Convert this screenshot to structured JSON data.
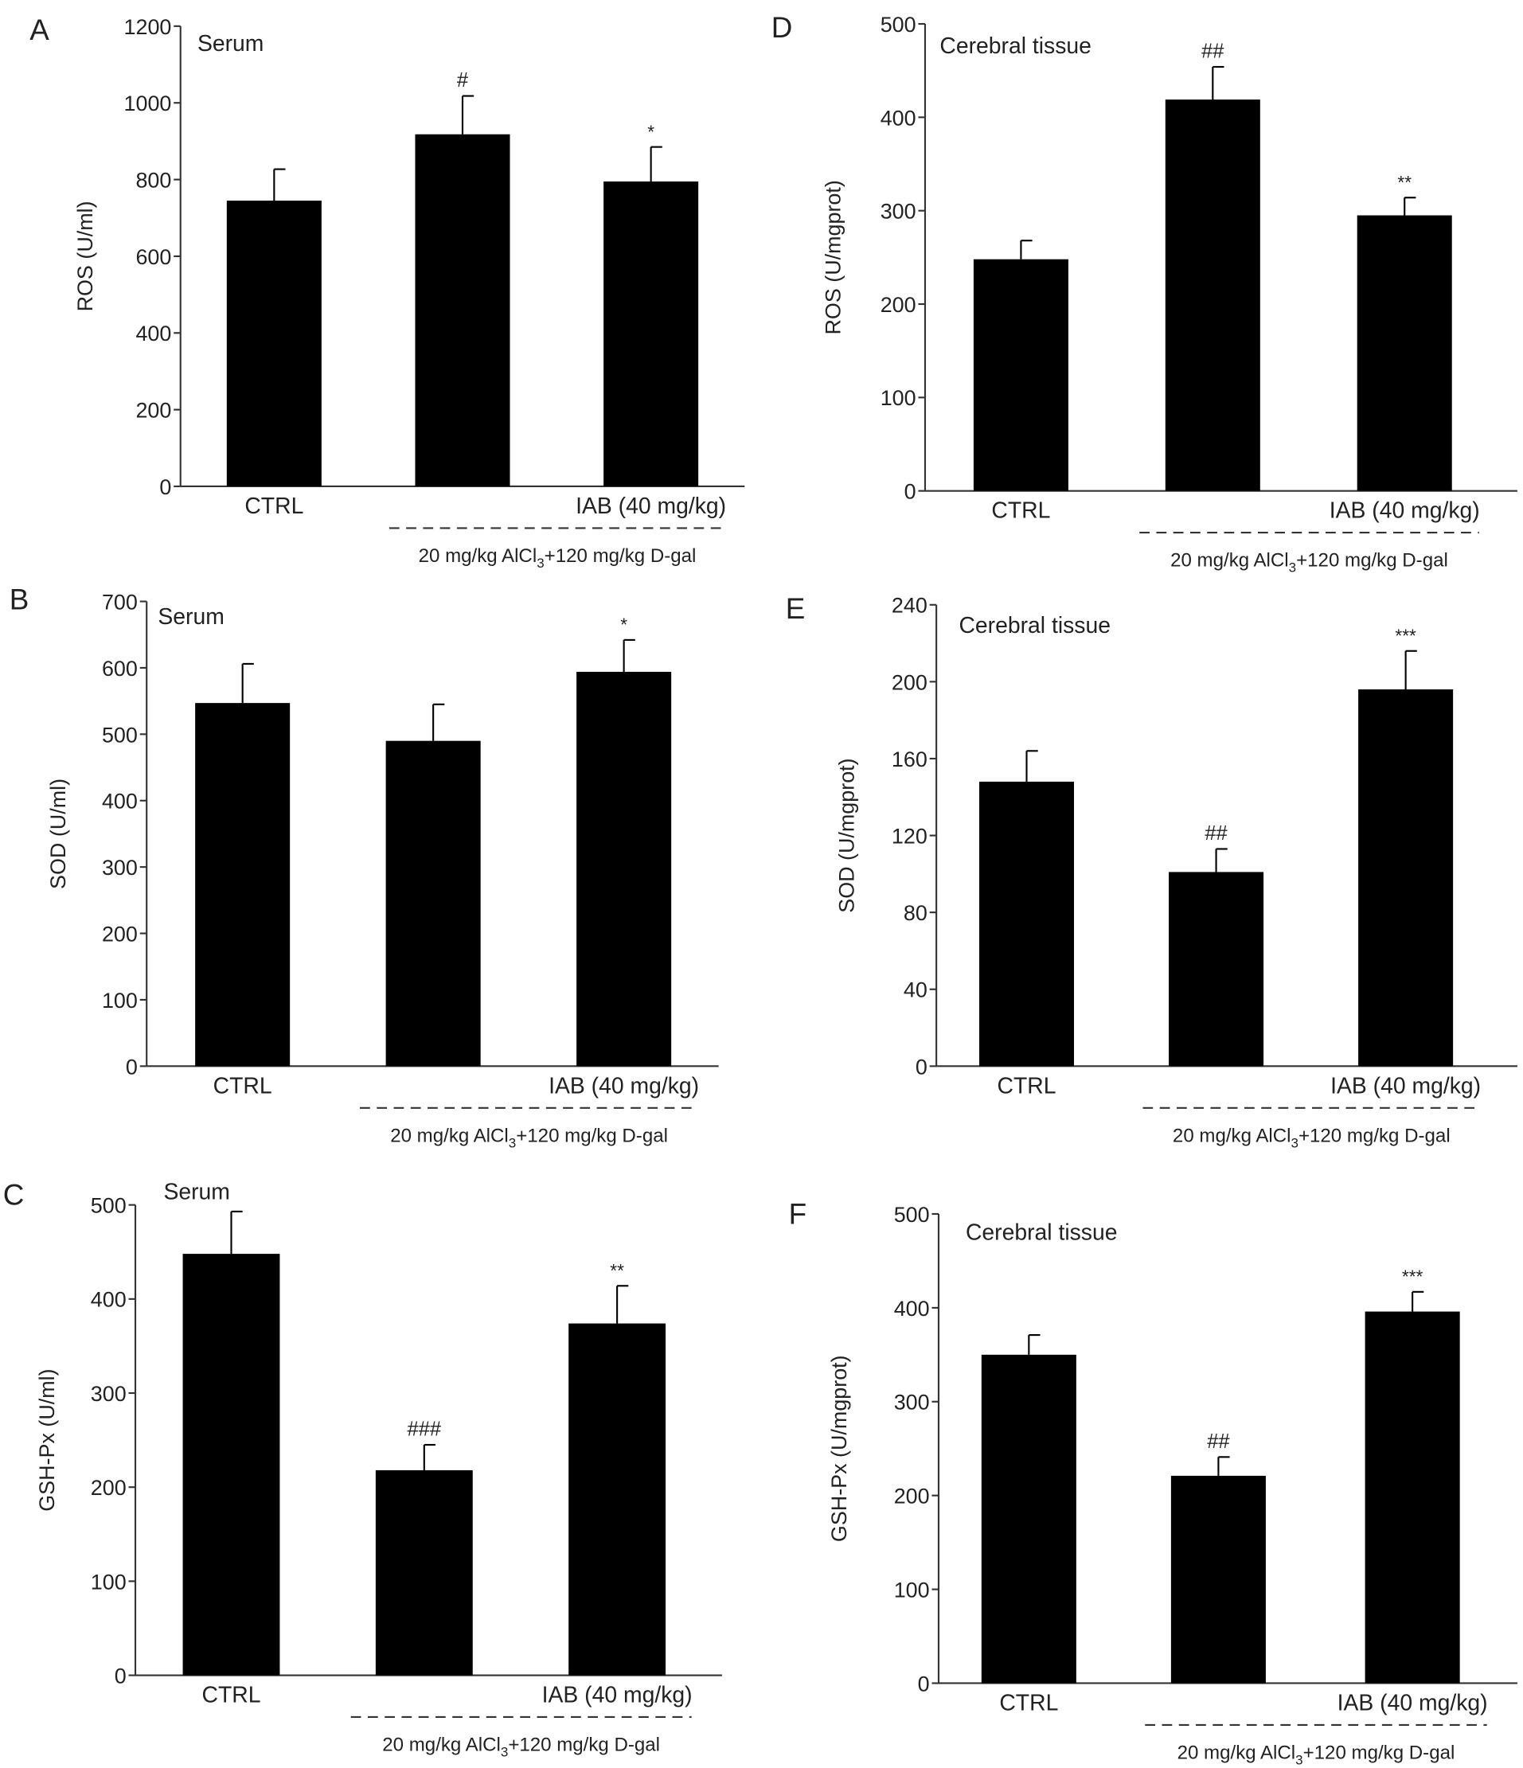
{
  "chart_data": [
    {
      "panel": "A",
      "type": "bar",
      "title": "Serum",
      "ylabel": "ROS (U/ml)",
      "ylim": [
        0,
        1200
      ],
      "yticks": [
        0,
        200,
        400,
        600,
        800,
        1000,
        1200
      ],
      "categories": [
        "CTRL",
        "",
        "IAB (40 mg/kg)"
      ],
      "values": [
        745,
        918,
        795
      ],
      "errors": [
        82,
        100,
        90
      ],
      "annotations": [
        "",
        "#",
        "*"
      ],
      "group_label": "20 mg/kg AlCl3+120 mg/kg D-gal"
    },
    {
      "panel": "B",
      "type": "bar",
      "title": "Serum",
      "ylabel": "SOD (U/ml)",
      "ylim": [
        0,
        700
      ],
      "yticks": [
        0,
        100,
        200,
        300,
        400,
        500,
        600,
        700
      ],
      "categories": [
        "CTRL",
        "",
        "IAB (40 mg/kg)"
      ],
      "values": [
        547,
        490,
        594
      ],
      "errors": [
        59,
        55,
        48
      ],
      "annotations": [
        "",
        "",
        "*"
      ],
      "group_label": "20 mg/kg AlCl3+120 mg/kg D-gal"
    },
    {
      "panel": "C",
      "type": "bar",
      "title": "Serum",
      "ylabel": "GSH-Px (U/ml)",
      "ylim": [
        0,
        500
      ],
      "yticks": [
        0,
        100,
        200,
        300,
        400,
        500
      ],
      "categories": [
        "CTRL",
        "",
        "IAB (40 mg/kg)"
      ],
      "values": [
        448,
        218,
        374
      ],
      "errors": [
        45,
        27,
        40
      ],
      "annotations": [
        "",
        "###",
        "**"
      ],
      "group_label": "20 mg/kg AlCl3+120 mg/kg D-gal"
    },
    {
      "panel": "D",
      "type": "bar",
      "title": "Cerebral tissue",
      "ylabel": "ROS (U/mgprot)",
      "ylim": [
        0,
        500
      ],
      "yticks": [
        0,
        100,
        200,
        300,
        400,
        500
      ],
      "categories": [
        "CTRL",
        "",
        "IAB (40 mg/kg)"
      ],
      "values": [
        248,
        419,
        295
      ],
      "errors": [
        20,
        35,
        19
      ],
      "annotations": [
        "",
        "##",
        "**"
      ],
      "group_label": "20 mg/kg AlCl3+120 mg/kg D-gal"
    },
    {
      "panel": "E",
      "type": "bar",
      "title": "Cerebral tissue",
      "ylabel": "SOD (U/mgprot)",
      "ylim": [
        0,
        240
      ],
      "yticks": [
        0,
        40,
        80,
        120,
        160,
        200,
        240
      ],
      "categories": [
        "CTRL",
        "",
        "IAB (40 mg/kg)"
      ],
      "values": [
        148,
        101,
        196
      ],
      "errors": [
        16,
        12,
        20
      ],
      "annotations": [
        "",
        "##",
        "***"
      ],
      "group_label": "20 mg/kg AlCl3+120 mg/kg D-gal"
    },
    {
      "panel": "F",
      "type": "bar",
      "title": "Cerebral tissue",
      "ylabel": "GSH-Px (U/mgprot)",
      "ylim": [
        0,
        500
      ],
      "yticks": [
        0,
        100,
        200,
        300,
        400,
        500
      ],
      "categories": [
        "CTRL",
        "",
        "IAB (40 mg/kg)"
      ],
      "values": [
        350,
        221,
        396
      ],
      "errors": [
        21,
        20,
        21
      ],
      "annotations": [
        "",
        "##",
        "***"
      ],
      "group_label": "20 mg/kg AlCl3+120 mg/kg D-gal"
    }
  ],
  "colors": {
    "bar": "#000000",
    "axis": "#333333",
    "text": "#222222"
  }
}
